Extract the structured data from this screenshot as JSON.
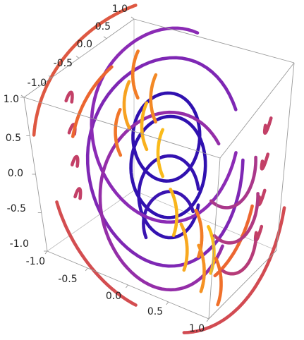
{
  "chart_data": {
    "type": "streamplot3d",
    "title": "",
    "xlabel": "",
    "ylabel": "",
    "zlabel": "",
    "xlim": [
      -1.0,
      1.0
    ],
    "ylim": [
      -1.0,
      1.0
    ],
    "zlim": [
      -1.0,
      1.0
    ],
    "ticks": {
      "x": [
        "-1.0",
        "-0.5",
        "0.0",
        "0.5",
        "1.0"
      ],
      "y": [
        "-1.0",
        "-0.5",
        "0.0",
        "0.5",
        "1.0"
      ],
      "z": [
        "-1.0",
        "-0.5",
        "0.0",
        "0.5",
        "1.0"
      ]
    },
    "color_scale": {
      "low": "#2a0fb0",
      "mid_low": "#8b2bb5",
      "mid": "#c9425e",
      "mid_high": "#ef6a2b",
      "high": "#fbc11a"
    },
    "box": true,
    "streamlines": [
      {
        "t": 0.02,
        "c": [
          0.0,
          0.03,
          0.0
        ],
        "u": [
          0.3,
          0.28,
          0.1
        ],
        "v": [
          -0.2,
          0.22,
          0.42
        ],
        "a": [
          0.0,
          6.28
        ]
      },
      {
        "t": 0.02,
        "c": [
          0.0,
          -0.02,
          0.38
        ],
        "u": [
          0.26,
          0.24,
          0.09
        ],
        "v": [
          -0.18,
          0.19,
          0.36
        ],
        "a": [
          0.0,
          6.28
        ]
      },
      {
        "t": 0.03,
        "c": [
          0.0,
          0.05,
          -0.36
        ],
        "u": [
          0.25,
          0.23,
          0.08
        ],
        "v": [
          -0.17,
          0.18,
          0.34
        ],
        "a": [
          0.0,
          5.9
        ]
      },
      {
        "t": 0.05,
        "c": [
          0.02,
          0.02,
          -0.66
        ],
        "u": [
          0.22,
          0.2,
          0.07
        ],
        "v": [
          -0.14,
          0.16,
          0.26
        ],
        "a": [
          0.2,
          3.4
        ]
      },
      {
        "t": 0.26,
        "c": [
          0.0,
          0.0,
          0.06
        ],
        "u": [
          0.62,
          0.58,
          0.2
        ],
        "v": [
          -0.42,
          0.46,
          0.86
        ],
        "a": [
          0.3,
          6.1
        ]
      },
      {
        "t": 0.3,
        "c": [
          0.0,
          0.0,
          0.5
        ],
        "u": [
          0.58,
          0.52,
          0.18
        ],
        "v": [
          -0.38,
          0.42,
          0.8
        ],
        "a": [
          1.0,
          5.8
        ]
      },
      {
        "t": 0.33,
        "c": [
          0.0,
          0.0,
          -0.4
        ],
        "u": [
          0.55,
          0.5,
          0.17
        ],
        "v": [
          -0.36,
          0.4,
          0.74
        ],
        "a": [
          0.5,
          5.6
        ]
      },
      {
        "t": 0.62,
        "c": [
          -0.1,
          0.0,
          0.1
        ],
        "u": [
          0.95,
          0.9,
          0.3
        ],
        "v": [
          -0.62,
          0.68,
          1.3
        ],
        "a": [
          1.6,
          2.8
        ]
      },
      {
        "t": 0.55,
        "c": [
          0.1,
          0.0,
          -0.1
        ],
        "u": [
          0.95,
          0.9,
          0.3
        ],
        "v": [
          -0.62,
          0.68,
          1.3
        ],
        "a": [
          4.6,
          5.9
        ]
      },
      {
        "t": 0.56,
        "c": [
          0.0,
          0.0,
          0.0
        ],
        "u": [
          0.9,
          0.85,
          0.28
        ],
        "v": [
          -0.6,
          0.65,
          1.25
        ],
        "a": [
          3.2,
          4.2
        ]
      },
      {
        "t": 0.48,
        "c": [
          -0.98,
          -0.3,
          0.55
        ],
        "u": [
          0.0,
          0.08,
          0.02
        ],
        "v": [
          0.0,
          0.06,
          0.14
        ],
        "a": [
          0.0,
          2.4
        ]
      },
      {
        "t": 0.48,
        "c": [
          -0.98,
          -0.3,
          0.15
        ],
        "u": [
          0.0,
          0.08,
          0.02
        ],
        "v": [
          0.0,
          0.06,
          0.14
        ],
        "a": [
          0.0,
          2.4
        ]
      },
      {
        "t": 0.48,
        "c": [
          -0.98,
          -0.3,
          -0.25
        ],
        "u": [
          0.0,
          0.08,
          0.02
        ],
        "v": [
          0.0,
          0.06,
          0.14
        ],
        "a": [
          0.0,
          2.4
        ]
      },
      {
        "t": 0.48,
        "c": [
          -0.98,
          -0.3,
          -0.65
        ],
        "u": [
          0.0,
          0.08,
          0.02
        ],
        "v": [
          0.0,
          0.06,
          0.14
        ],
        "a": [
          0.0,
          2.4
        ]
      },
      {
        "t": 0.48,
        "c": [
          0.98,
          0.45,
          0.7
        ],
        "u": [
          0.0,
          0.09,
          0.02
        ],
        "v": [
          0.0,
          0.07,
          0.15
        ],
        "a": [
          3.4,
          5.8
        ]
      },
      {
        "t": 0.48,
        "c": [
          0.98,
          0.45,
          0.3
        ],
        "u": [
          0.0,
          0.09,
          0.02
        ],
        "v": [
          0.0,
          0.07,
          0.15
        ],
        "a": [
          3.4,
          5.8
        ]
      },
      {
        "t": 0.48,
        "c": [
          0.98,
          0.45,
          -0.1
        ],
        "u": [
          0.0,
          0.09,
          0.02
        ],
        "v": [
          0.0,
          0.07,
          0.15
        ],
        "a": [
          3.4,
          5.8
        ]
      },
      {
        "t": 0.48,
        "c": [
          0.98,
          0.45,
          -0.5
        ],
        "u": [
          0.0,
          0.09,
          0.02
        ],
        "v": [
          0.0,
          0.07,
          0.15
        ],
        "a": [
          3.4,
          5.8
        ]
      },
      {
        "t": 0.78,
        "c": [
          -0.35,
          0.5,
          0.78
        ],
        "u": [
          0.22,
          0.2,
          0.06
        ],
        "v": [
          -0.16,
          0.2,
          0.34
        ],
        "a": [
          2.4,
          3.6
        ]
      },
      {
        "t": 0.82,
        "c": [
          -0.15,
          0.52,
          0.55
        ],
        "u": [
          0.22,
          0.2,
          0.06
        ],
        "v": [
          -0.16,
          0.2,
          0.34
        ],
        "a": [
          2.4,
          3.6
        ]
      },
      {
        "t": 0.9,
        "c": [
          -0.45,
          0.48,
          0.4
        ],
        "u": [
          0.22,
          0.2,
          0.06
        ],
        "v": [
          -0.16,
          0.2,
          0.34
        ],
        "a": [
          2.4,
          3.6
        ]
      },
      {
        "t": 0.95,
        "c": [
          -0.25,
          0.5,
          0.2
        ],
        "u": [
          0.22,
          0.2,
          0.06
        ],
        "v": [
          -0.16,
          0.2,
          0.34
        ],
        "a": [
          2.4,
          3.6
        ]
      },
      {
        "t": 0.76,
        "c": [
          -0.55,
          0.45,
          0.05
        ],
        "u": [
          0.22,
          0.2,
          0.06
        ],
        "v": [
          -0.16,
          0.2,
          0.34
        ],
        "a": [
          2.4,
          3.6
        ]
      },
      {
        "t": 0.98,
        "c": [
          -0.05,
          0.5,
          -0.05
        ],
        "u": [
          0.22,
          0.2,
          0.06
        ],
        "v": [
          -0.16,
          0.2,
          0.34
        ],
        "a": [
          2.4,
          3.6
        ]
      },
      {
        "t": 0.78,
        "c": [
          0.35,
          -0.5,
          -0.45
        ],
        "u": [
          0.22,
          0.2,
          0.06
        ],
        "v": [
          -0.16,
          0.2,
          0.34
        ],
        "a": [
          5.6,
          6.8
        ]
      },
      {
        "t": 0.92,
        "c": [
          0.2,
          -0.55,
          -0.65
        ],
        "u": [
          0.22,
          0.2,
          0.06
        ],
        "v": [
          -0.16,
          0.2,
          0.34
        ],
        "a": [
          5.6,
          6.8
        ]
      },
      {
        "t": 0.99,
        "c": [
          0.5,
          -0.48,
          -0.6
        ],
        "u": [
          0.22,
          0.2,
          0.06
        ],
        "v": [
          -0.16,
          0.2,
          0.34
        ],
        "a": [
          5.6,
          6.8
        ]
      },
      {
        "t": 0.85,
        "c": [
          0.4,
          -0.5,
          -0.85
        ],
        "u": [
          0.22,
          0.2,
          0.06
        ],
        "v": [
          -0.16,
          0.2,
          0.34
        ],
        "a": [
          5.6,
          6.8
        ]
      },
      {
        "t": 0.74,
        "c": [
          0.6,
          -0.45,
          -0.95
        ],
        "u": [
          0.22,
          0.2,
          0.06
        ],
        "v": [
          -0.16,
          0.2,
          0.34
        ],
        "a": [
          5.6,
          6.8
        ]
      },
      {
        "t": 0.96,
        "c": [
          0.05,
          -0.52,
          -0.3
        ],
        "u": [
          0.22,
          0.2,
          0.06
        ],
        "v": [
          -0.16,
          0.2,
          0.34
        ],
        "a": [
          5.6,
          6.8
        ]
      },
      {
        "t": 0.7,
        "c": [
          0.0,
          0.0,
          0.0
        ],
        "u": [
          0.75,
          0.7,
          0.22
        ],
        "v": [
          -0.5,
          0.56,
          1.05
        ],
        "a": [
          2.0,
          2.7
        ]
      },
      {
        "t": 0.7,
        "c": [
          0.0,
          0.0,
          0.0
        ],
        "u": [
          0.75,
          0.7,
          0.22
        ],
        "v": [
          -0.5,
          0.56,
          1.05
        ],
        "a": [
          5.1,
          5.8
        ]
      },
      {
        "t": 0.4,
        "c": [
          0.55,
          0.35,
          0.1
        ],
        "u": [
          0.25,
          0.22,
          0.07
        ],
        "v": [
          -0.18,
          0.22,
          0.36
        ],
        "a": [
          4.0,
          6.2
        ]
      },
      {
        "t": 0.42,
        "c": [
          0.6,
          0.38,
          -0.3
        ],
        "u": [
          0.25,
          0.22,
          0.07
        ],
        "v": [
          -0.18,
          0.22,
          0.36
        ],
        "a": [
          4.0,
          6.2
        ]
      },
      {
        "t": 0.44,
        "c": [
          0.65,
          0.4,
          -0.7
        ],
        "u": [
          0.22,
          0.2,
          0.06
        ],
        "v": [
          -0.16,
          0.2,
          0.32
        ],
        "a": [
          4.2,
          6.0
        ]
      }
    ]
  }
}
